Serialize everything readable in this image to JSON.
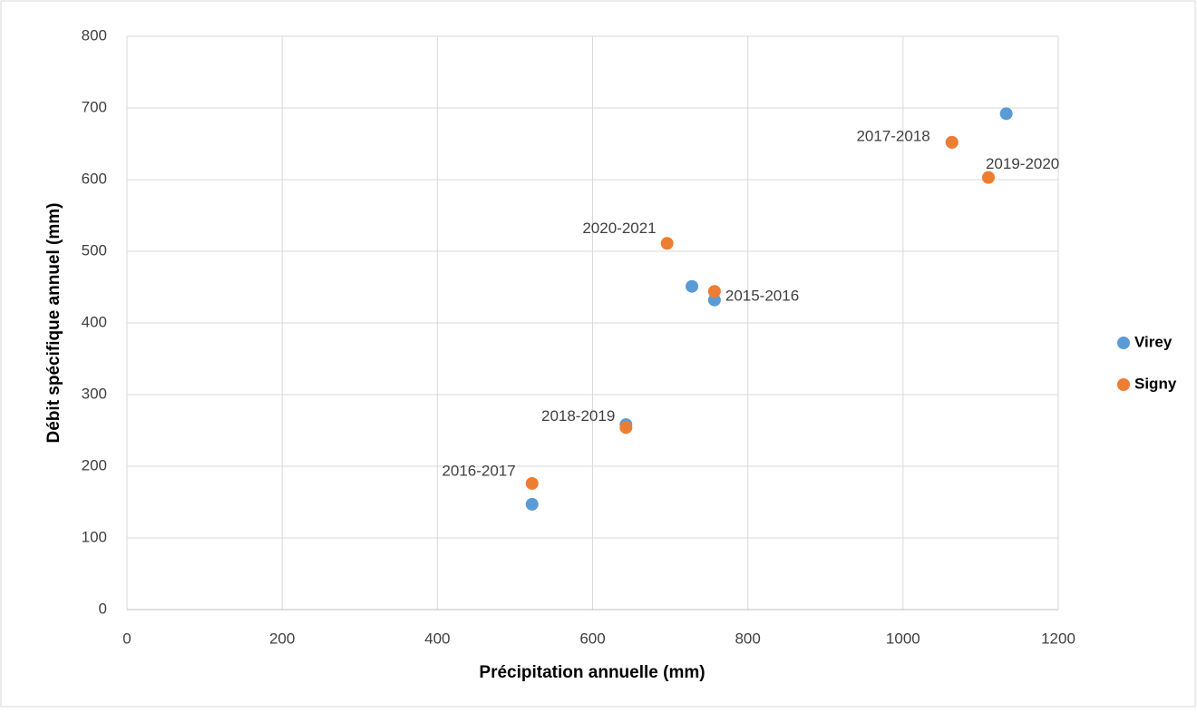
{
  "chart_data": {
    "type": "scatter",
    "x_label": "Précipitation annuelle (mm)",
    "y_label": "Débit spécifique annuel (mm)",
    "xlim": [
      0,
      1200
    ],
    "xticks": [
      0,
      200,
      400,
      600,
      800,
      1000,
      1200
    ],
    "ylim": [
      0,
      800
    ],
    "yticks": [
      0,
      100,
      200,
      300,
      400,
      500,
      600,
      700,
      800
    ],
    "grid": true,
    "legend": "right",
    "series": [
      {
        "name": "Virey",
        "color": "#5b9bd5",
        "x": [
          1133,
          1063,
          728,
          757,
          643,
          522
        ],
        "values": [
          692,
          652,
          451,
          432,
          258,
          147
        ]
      },
      {
        "name": "Signy",
        "color": "#ed7d31",
        "x": [
          1063,
          1110,
          696,
          757,
          643,
          522
        ],
        "values": [
          652,
          603,
          511,
          444,
          254,
          176
        ],
        "point_labels": [
          "2017-2018",
          "2019-2020",
          "2020-2021",
          "2015-2016",
          "2018-2019",
          "2016-2017"
        ]
      }
    ]
  }
}
